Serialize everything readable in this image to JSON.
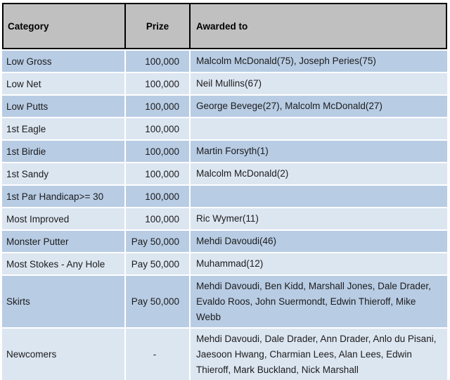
{
  "table": {
    "columns": {
      "category": "Category",
      "prize": "Prize",
      "awarded": "Awarded to"
    },
    "rows": [
      {
        "category": "Low Gross",
        "prize": "100,000",
        "awarded": "Malcolm McDonald(75), Joseph Peries(75)"
      },
      {
        "category": "Low Net",
        "prize": "100,000",
        "awarded": "Neil Mullins(67)"
      },
      {
        "category": "Low Putts",
        "prize": "100,000",
        "awarded": "George Bevege(27), Malcolm McDonald(27)"
      },
      {
        "category": "1st Eagle",
        "prize": "100,000",
        "awarded": ""
      },
      {
        "category": "1st Birdie",
        "prize": "100,000",
        "awarded": "Martin Forsyth(1)"
      },
      {
        "category": "1st Sandy",
        "prize": "100,000",
        "awarded": "Malcolm McDonald(2)"
      },
      {
        "category": "1st Par Handicap>= 30",
        "prize": "100,000",
        "awarded": ""
      },
      {
        "category": "Most Improved",
        "prize": "100,000",
        "awarded": "Ric Wymer(11)"
      },
      {
        "category": "Monster Putter",
        "prize": "Pay 50,000",
        "awarded": "Mehdi Davoudi(46)"
      },
      {
        "category": "Most Stokes - Any Hole",
        "prize": "Pay 50,000",
        "awarded": "Muhammad(12)"
      },
      {
        "category": "Skirts",
        "prize": "Pay 50,000",
        "awarded": "Mehdi Davoudi, Ben Kidd, Marshall Jones, Dale Drader, Evaldo Roos, John Suermondt, Edwin Thieroff, Mike Webb"
      },
      {
        "category": "Newcomers",
        "prize": "-",
        "awarded": "Mehdi Davoudi, Dale Drader, Ann Drader, Anlo du Pisani, Jaesoon Hwang, Charmian Lees, Alan Lees, Edwin Thieroff, Mark Buckland, Nick Marshall"
      }
    ],
    "colors": {
      "header_bg": "#c0c0c0",
      "row_dark": "#b8cce4",
      "row_light": "#dce6f1",
      "border": "#000000",
      "text": "#1c1c1c"
    }
  }
}
